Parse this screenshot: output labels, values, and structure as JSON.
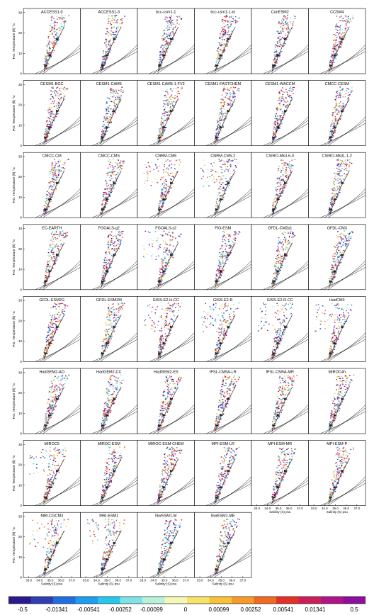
{
  "chart_data": {
    "type": "scatter",
    "panel_titles": [
      "ACCESS1-0",
      "ACCESS1-3",
      "bcc-csm1-1",
      "bcc-csm1-1-m",
      "CanESM2",
      "CCSM4",
      "CESM1-BGC",
      "CESM1-CAM5",
      "CESM1-CAM5-1-FV2",
      "CESM1-FASTCHEM",
      "CESM1-WACCM",
      "CMCC-CESM",
      "CMCC-CM",
      "CMCC-CMS",
      "CNRM-CM5",
      "CNRM-CM5-2",
      "CSIRO-Mk3-6-0",
      "CSIRO-Mk3L-1-2",
      "EC-EARTH",
      "FGOALS-g2",
      "FGOALS-s2",
      "FIO-ESM",
      "GFDL-CM2p1",
      "GFDL-CM3",
      "GFDL-ESM2G",
      "GFDL-ESM2M",
      "GISS-E2-H-CC",
      "GISS-E2-R",
      "GISS-E2-R-CC",
      "HadCM3",
      "HadGEM2-AO",
      "HadGEM2-CC",
      "HadGEM2-ES",
      "IPSL-CM5A-LR",
      "IPSL-CM5A-MR",
      "MIROC4h",
      "MIROC5",
      "MIROC-ESM",
      "MIROC-ESM-CHEM",
      "MPI-ESM-LR",
      "MPI-ESM-MR",
      "MPI-ESM-P",
      "MRI-CGCM3",
      "MRI-ESM1",
      "NorESM1-M",
      "NorESM1-ME"
    ],
    "ylabel": "Pot. Temperature (θ) °C",
    "xlabel": "Salinity (S) psu",
    "y_ticks": [
      "0",
      "10",
      "20",
      "30"
    ],
    "x_ticks": [
      "33.0",
      "34.0",
      "35.0",
      "36.0",
      "37.0"
    ],
    "xlim": [
      32.5,
      37.8
    ],
    "ylim": [
      0,
      32
    ],
    "colorbar": {
      "labels": [
        "-0.5",
        "-0.01341",
        "-0.00541",
        "-0.00252",
        "-0.00099",
        "0",
        "0.00099",
        "0.00252",
        "0.00541",
        "0.01341",
        "0.5"
      ],
      "colors": [
        "#2b1a8c",
        "#2f3fb0",
        "#1f6fe0",
        "#1e9ef0",
        "#27c7ec",
        "#7fe3e6",
        "#b8f0d8",
        "#f4f7b5",
        "#f8e26a",
        "#f7c23a",
        "#f79a2a",
        "#f06a24",
        "#e5302a",
        "#cc1f5a",
        "#b0148a",
        "#8e0f9e"
      ]
    }
  }
}
